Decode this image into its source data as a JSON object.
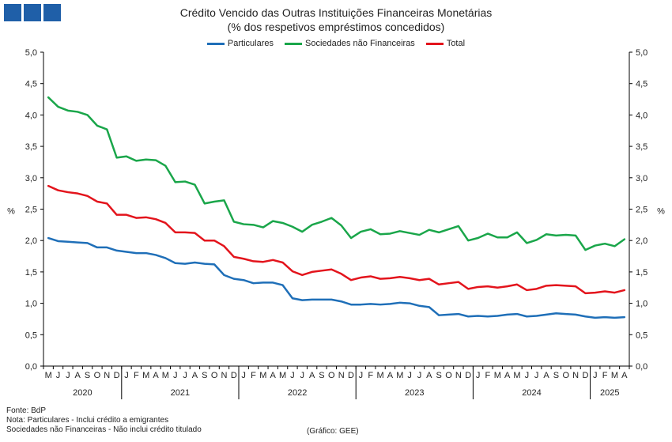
{
  "header": {
    "title": "Crédito Vencido das Outras Instituições Financeiras Monetárias",
    "subtitle": "(% dos respetivos empréstimos concedidos)"
  },
  "footer": {
    "source": "Fonte: BdP",
    "note1": "Nota: Particulares - Inclui crédito a emigrantes",
    "note2": "Sociedades não Financeiras - Não inclui crédito titulado",
    "credit": "(Gráfico: GEE)"
  },
  "chart_data": {
    "type": "line",
    "ylabel": "%",
    "ylim": [
      0,
      5
    ],
    "yticks": [
      "0,0",
      "0,5",
      "1,0",
      "1,5",
      "2,0",
      "2,5",
      "3,0",
      "3,5",
      "4,0",
      "4,5",
      "5,0"
    ],
    "month_labels": [
      "M",
      "J",
      "J",
      "A",
      "S",
      "O",
      "N",
      "D",
      "J",
      "F",
      "M",
      "A",
      "M",
      "J",
      "J",
      "A",
      "S",
      "O",
      "N",
      "D",
      "J",
      "F",
      "M",
      "A",
      "M",
      "J",
      "J",
      "A",
      "S",
      "O",
      "N",
      "D",
      "J",
      "F",
      "M",
      "A",
      "M",
      "J",
      "J",
      "A",
      "S",
      "O",
      "N",
      "D",
      "J",
      "F",
      "M",
      "A",
      "M",
      "J",
      "J",
      "A",
      "S",
      "O",
      "N",
      "D",
      "J",
      "F",
      "M",
      "A"
    ],
    "years": [
      {
        "label": "2020",
        "start": 0,
        "end": 7
      },
      {
        "label": "2021",
        "start": 8,
        "end": 19
      },
      {
        "label": "2022",
        "start": 20,
        "end": 31
      },
      {
        "label": "2023",
        "start": 32,
        "end": 43
      },
      {
        "label": "2024",
        "start": 44,
        "end": 55
      },
      {
        "label": "2025",
        "start": 56,
        "end": 59
      }
    ],
    "grid": false,
    "legend_position": "top-center",
    "series": [
      {
        "name": "Particulares",
        "color": "#1f6fb8",
        "values": [
          2.04,
          1.99,
          1.98,
          1.97,
          1.96,
          1.89,
          1.89,
          1.84,
          1.82,
          1.8,
          1.8,
          1.77,
          1.72,
          1.64,
          1.63,
          1.65,
          1.63,
          1.62,
          1.45,
          1.39,
          1.37,
          1.32,
          1.33,
          1.33,
          1.29,
          1.08,
          1.05,
          1.06,
          1.06,
          1.06,
          1.03,
          0.98,
          0.98,
          0.99,
          0.98,
          0.99,
          1.01,
          1.0,
          0.96,
          0.94,
          0.81,
          0.82,
          0.83,
          0.79,
          0.8,
          0.79,
          0.8,
          0.82,
          0.83,
          0.79,
          0.8,
          0.82,
          0.84,
          0.83,
          0.82,
          0.79,
          0.77,
          0.78,
          0.77,
          0.78
        ]
      },
      {
        "name": "Sociedades não Financeiras",
        "color": "#1aa64a",
        "values": [
          4.28,
          4.13,
          4.07,
          4.05,
          4.0,
          3.83,
          3.77,
          3.32,
          3.34,
          3.27,
          3.29,
          3.28,
          3.19,
          2.93,
          2.94,
          2.89,
          2.59,
          2.62,
          2.64,
          2.3,
          2.26,
          2.25,
          2.21,
          2.31,
          2.28,
          2.22,
          2.14,
          2.25,
          2.3,
          2.36,
          2.24,
          2.04,
          2.14,
          2.18,
          2.1,
          2.11,
          2.15,
          2.12,
          2.09,
          2.17,
          2.13,
          2.18,
          2.23,
          2.0,
          2.04,
          2.11,
          2.05,
          2.05,
          2.13,
          1.96,
          2.01,
          2.1,
          2.08,
          2.09,
          2.08,
          1.85,
          1.92,
          1.95,
          1.91,
          2.02
        ]
      },
      {
        "name": "Total",
        "color": "#e3141c",
        "values": [
          2.87,
          2.8,
          2.77,
          2.75,
          2.71,
          2.62,
          2.59,
          2.41,
          2.41,
          2.36,
          2.37,
          2.34,
          2.28,
          2.13,
          2.13,
          2.12,
          2.0,
          2.0,
          1.91,
          1.74,
          1.71,
          1.67,
          1.66,
          1.69,
          1.65,
          1.51,
          1.45,
          1.5,
          1.52,
          1.54,
          1.47,
          1.37,
          1.41,
          1.43,
          1.39,
          1.4,
          1.42,
          1.4,
          1.37,
          1.39,
          1.3,
          1.32,
          1.34,
          1.23,
          1.26,
          1.27,
          1.25,
          1.27,
          1.3,
          1.21,
          1.23,
          1.28,
          1.29,
          1.28,
          1.27,
          1.16,
          1.17,
          1.19,
          1.17,
          1.21
        ]
      }
    ]
  }
}
